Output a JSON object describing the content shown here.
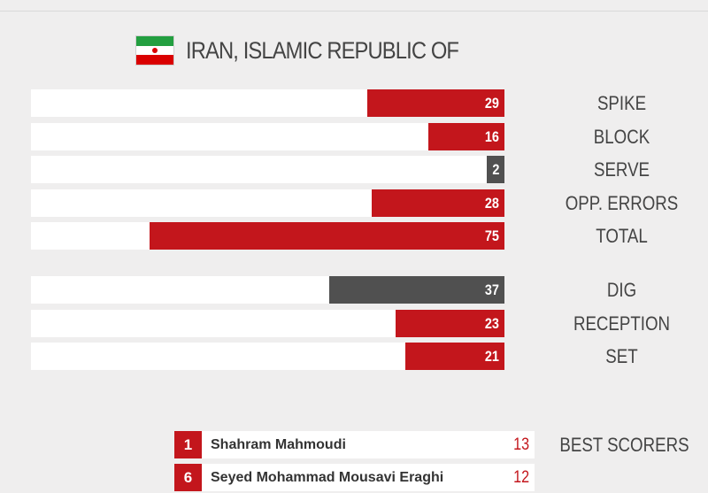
{
  "team": {
    "name": "IRAN, ISLAMIC REPUBLIC OF",
    "flag_colors": [
      "#239f40",
      "#ffffff",
      "#da0000"
    ]
  },
  "colors": {
    "red": "#c3161c",
    "dark": "#505050"
  },
  "chart_data": {
    "type": "bar",
    "orientation": "horizontal",
    "scale_max": 75,
    "groups": [
      {
        "categories": [
          "SPIKE",
          "BLOCK",
          "SERVE",
          "OPP. ERRORS",
          "TOTAL"
        ],
        "values": [
          29,
          16,
          2,
          28,
          75
        ],
        "colors": [
          "red",
          "red",
          "dark",
          "red",
          "red"
        ]
      },
      {
        "categories": [
          "DIG",
          "RECEPTION",
          "SET"
        ],
        "values": [
          37,
          23,
          21
        ],
        "colors": [
          "dark",
          "red",
          "red"
        ]
      }
    ]
  },
  "best_scorers": {
    "label": "BEST SCORERS",
    "players": [
      {
        "rank": "1",
        "name": "Shahram Mahmoudi",
        "points": "13"
      },
      {
        "rank": "6",
        "name": "Seyed Mohammad Mousavi Eraghi",
        "points": "12"
      }
    ]
  }
}
